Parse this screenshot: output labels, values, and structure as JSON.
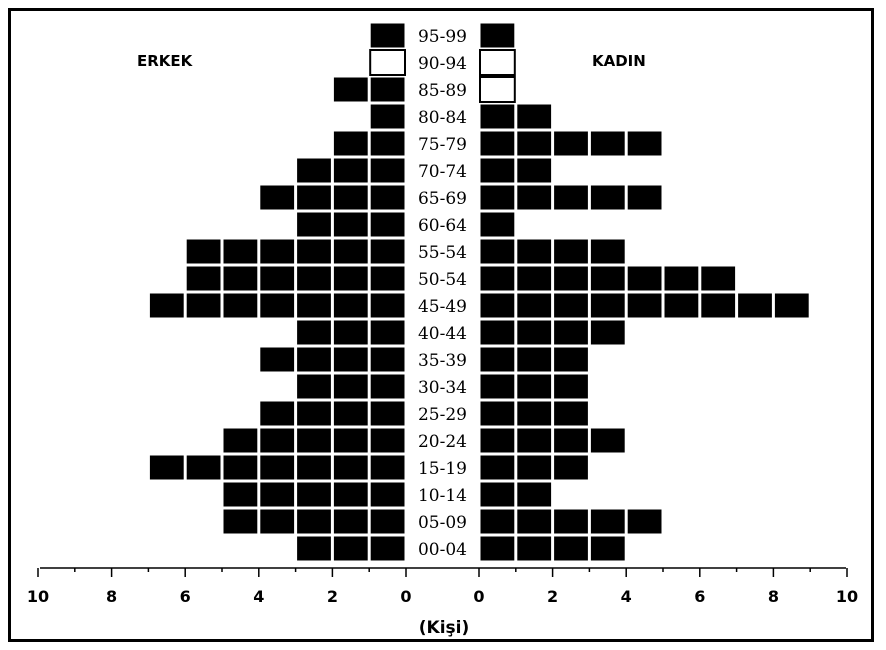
{
  "chart_data": {
    "type": "population-pyramid",
    "xlabel": "(Kişi)",
    "left_label": "ERKEK",
    "right_label": "KADIN",
    "xlim": [
      0,
      10
    ],
    "left_ticks": [
      "10",
      "8",
      "6",
      "4",
      "2",
      "0"
    ],
    "right_ticks": [
      "0",
      "2",
      "4",
      "6",
      "8",
      "10"
    ],
    "categories": [
      "95-99",
      "90-94",
      "85-89",
      "80-84",
      "75-79",
      "70-74",
      "65-69",
      "60-64",
      "55-54",
      "50-54",
      "45-49",
      "40-44",
      "35-39",
      "30-34",
      "25-29",
      "20-24",
      "15-19",
      "10-14",
      "05-09",
      "00-04"
    ],
    "series": [
      {
        "name": "ERKEK",
        "values": [
          1,
          1,
          2,
          1,
          2,
          3,
          4,
          3,
          6,
          6,
          7,
          3,
          4,
          3,
          4,
          5,
          7,
          5,
          5,
          3
        ],
        "outlined_cells": [
          0,
          1,
          0,
          0,
          0,
          0,
          0,
          0,
          0,
          0,
          0,
          0,
          0,
          0,
          0,
          0,
          0,
          0,
          0,
          0
        ]
      },
      {
        "name": "KADIN",
        "values": [
          1,
          1,
          1,
          2,
          5,
          2,
          5,
          1,
          4,
          7,
          9,
          4,
          3,
          3,
          3,
          4,
          3,
          2,
          5,
          4
        ],
        "outlined_cells": [
          0,
          1,
          1,
          0,
          0,
          0,
          0,
          0,
          0,
          0,
          0,
          0,
          0,
          0,
          0,
          0,
          0,
          0,
          0,
          0
        ]
      }
    ],
    "fill_color": "#000000",
    "outline_color": "#000000",
    "cell_divider_color": "#ffffff"
  }
}
